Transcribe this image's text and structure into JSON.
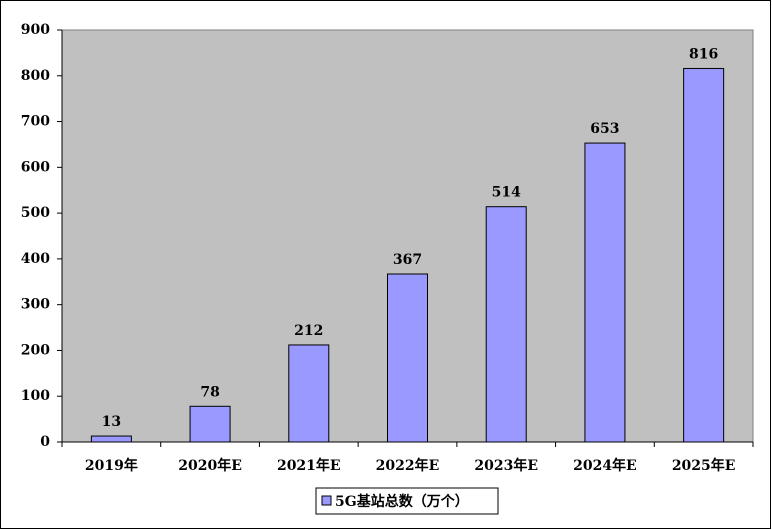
{
  "chart_data": {
    "type": "bar",
    "categories": [
      "2019年",
      "2020年E",
      "2021年E",
      "2022年E",
      "2023年E",
      "2024年E",
      "2025年E"
    ],
    "series": [
      {
        "name": "5G基站总数（万个）",
        "color": "#9999ff",
        "values": [
          13,
          78,
          212,
          367,
          514,
          653,
          816
        ]
      }
    ],
    "ylim": [
      0,
      900
    ],
    "yticks": [
      0,
      100,
      200,
      300,
      400,
      500,
      600,
      700,
      800,
      900
    ],
    "plot_background": "#c0c0c0",
    "legend_position": "bottom",
    "grid": false
  }
}
